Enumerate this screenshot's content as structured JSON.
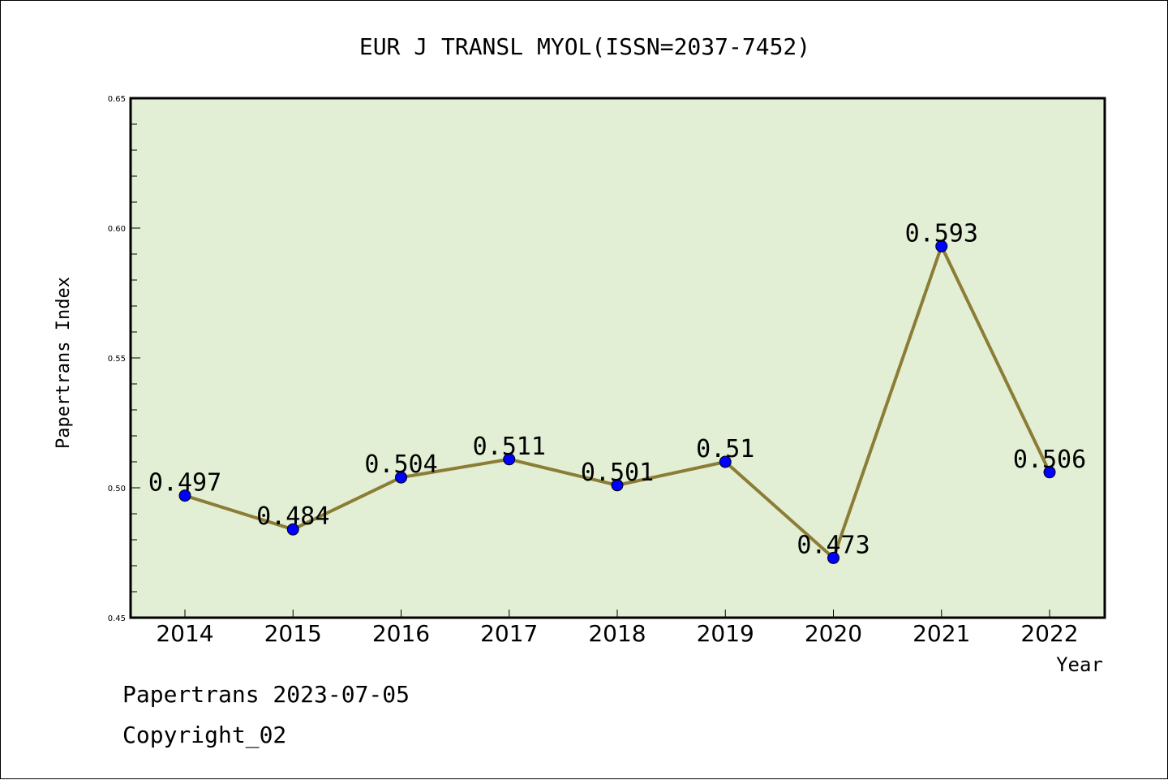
{
  "chart_data": {
    "type": "line",
    "title": "EUR J TRANSL MYOL(ISSN=2037-7452)",
    "xlabel": "Year",
    "ylabel": "Papertrans Index",
    "categories": [
      "2014",
      "2015",
      "2016",
      "2017",
      "2018",
      "2019",
      "2020",
      "2021",
      "2022"
    ],
    "series": [
      {
        "values": [
          0.497,
          0.484,
          0.504,
          0.511,
          0.501,
          0.51,
          0.473,
          0.593,
          0.506
        ],
        "data_labels": [
          "0.497",
          "0.484",
          "0.504",
          "0.511",
          "0.501",
          "0.51",
          "0.473",
          "0.593",
          "0.506"
        ]
      }
    ],
    "ylim": [
      0.45,
      0.65
    ],
    "yticks": [
      "0.45",
      "0.50",
      "0.55",
      "0.60",
      "0.65"
    ],
    "grid": false,
    "legend": "none",
    "colors": {
      "line": "#8b7d35",
      "marker": "#0000ff",
      "plot_background": "#e2efd5"
    }
  },
  "footer": {
    "source": "Papertrans 2023-07-05",
    "copyright": "Copyright_02"
  }
}
